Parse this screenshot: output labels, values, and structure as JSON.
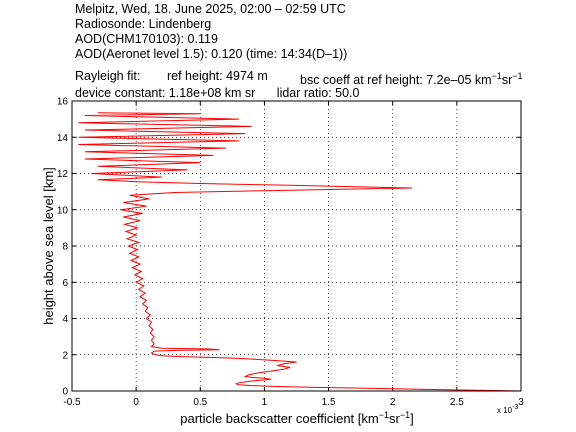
{
  "header": {
    "line1": "Melpitz, Wed, 18. June 2025, 02:00 – 02:59 UTC",
    "line2": "Radiosonde: Lindenberg",
    "line3": "AOD(CHM170103): 0.119",
    "line4": "AOD(Aeronet level 1.5): 0.120   (time: 14:34(D–1))",
    "rayleigh_label": "Rayleigh fit:",
    "ref_height": "ref height: 4974 m",
    "bsc_coeff_prefix": "bsc coeff at ref height: 7.2e–05 km",
    "device_constant": "device constant: 1.18e+08 km sr",
    "lidar_ratio": "lidar ratio: 50.0"
  },
  "chart_data": {
    "type": "line",
    "xlabel": "particle backscatter coefficient [km⁻¹sr⁻¹]",
    "xlabel_parts": {
      "pre": "particle backscatter coefficient [km",
      "sup1": "−1",
      "mid": "sr",
      "sup2": "−1",
      "post": "]"
    },
    "ylabel": "height above sea level [km]",
    "x_multiplier": "x 10",
    "x_multiplier_exp": "-3",
    "xlim": [
      -0.5,
      3.0
    ],
    "ylim": [
      0,
      16
    ],
    "xticks": [
      -0.5,
      0,
      0.5,
      1,
      1.5,
      2,
      2.5,
      3
    ],
    "xtick_labels": [
      "-0.5",
      "0",
      "0.5",
      "1",
      "1.5",
      "2",
      "2.5",
      "3"
    ],
    "yticks": [
      0,
      2,
      4,
      6,
      8,
      10,
      12,
      14,
      16
    ],
    "ytick_labels": [
      "0",
      "2",
      "4",
      "6",
      "8",
      "10",
      "12",
      "14",
      "16"
    ],
    "grid": "dotted",
    "line_color": "#ff0000",
    "series": [
      {
        "profile": [
          [
            3.0,
            0.0
          ],
          [
            2.6,
            0.05
          ],
          [
            2.2,
            0.1
          ],
          [
            1.8,
            0.15
          ],
          [
            1.4,
            0.2
          ],
          [
            1.1,
            0.25
          ],
          [
            0.9,
            0.3
          ],
          [
            0.8,
            0.35
          ],
          [
            0.78,
            0.4
          ],
          [
            0.8,
            0.45
          ],
          [
            0.85,
            0.5
          ],
          [
            0.9,
            0.55
          ],
          [
            0.98,
            0.6
          ],
          [
            1.05,
            0.65
          ],
          [
            1.0,
            0.7
          ],
          [
            0.9,
            0.75
          ],
          [
            0.85,
            0.8
          ],
          [
            0.88,
            0.9
          ],
          [
            0.95,
            1.0
          ],
          [
            1.05,
            1.1
          ],
          [
            1.15,
            1.2
          ],
          [
            1.2,
            1.3
          ],
          [
            1.1,
            1.4
          ],
          [
            1.15,
            1.5
          ],
          [
            1.25,
            1.6
          ],
          [
            1.05,
            1.7
          ],
          [
            0.8,
            1.8
          ],
          [
            0.6,
            1.85
          ],
          [
            0.35,
            1.9
          ],
          [
            0.2,
            1.95
          ],
          [
            0.15,
            2.0
          ],
          [
            0.12,
            2.1
          ],
          [
            0.14,
            2.2
          ],
          [
            0.35,
            2.25
          ],
          [
            0.65,
            2.28
          ],
          [
            0.55,
            2.32
          ],
          [
            0.2,
            2.36
          ],
          [
            0.12,
            2.45
          ],
          [
            0.14,
            2.6
          ],
          [
            0.12,
            2.8
          ],
          [
            0.14,
            3.0
          ],
          [
            0.11,
            3.2
          ],
          [
            0.13,
            3.4
          ],
          [
            0.1,
            3.6
          ],
          [
            0.12,
            3.8
          ],
          [
            0.08,
            4.0
          ],
          [
            0.11,
            4.2
          ],
          [
            0.07,
            4.4
          ],
          [
            0.09,
            4.6
          ],
          [
            0.05,
            4.8
          ],
          [
            0.08,
            5.0
          ],
          [
            0.03,
            5.2
          ],
          [
            0.07,
            5.4
          ],
          [
            0.02,
            5.6
          ],
          [
            0.06,
            5.8
          ],
          [
            0.0,
            6.0
          ],
          [
            0.05,
            6.2
          ],
          [
            -0.01,
            6.4
          ],
          [
            0.04,
            6.6
          ],
          [
            -0.03,
            6.8
          ],
          [
            0.03,
            7.0
          ],
          [
            -0.04,
            7.2
          ],
          [
            0.02,
            7.4
          ],
          [
            -0.05,
            7.6
          ],
          [
            0.01,
            7.8
          ],
          [
            -0.06,
            8.0
          ],
          [
            0.02,
            8.2
          ],
          [
            -0.07,
            8.4
          ],
          [
            0.0,
            8.6
          ],
          [
            -0.08,
            8.8
          ],
          [
            0.01,
            9.0
          ],
          [
            -0.09,
            9.2
          ],
          [
            0.03,
            9.4
          ],
          [
            -0.1,
            9.6
          ],
          [
            0.05,
            9.8
          ],
          [
            -0.12,
            10.0
          ],
          [
            0.08,
            10.2
          ],
          [
            -0.1,
            10.4
          ],
          [
            0.1,
            10.6
          ],
          [
            -0.05,
            10.8
          ],
          [
            0.3,
            10.95
          ],
          [
            1.0,
            11.05
          ],
          [
            2.15,
            11.2
          ],
          [
            1.2,
            11.35
          ],
          [
            0.5,
            11.45
          ],
          [
            0.0,
            11.55
          ],
          [
            -0.3,
            11.65
          ],
          [
            0.2,
            11.8
          ],
          [
            -0.35,
            12.0
          ],
          [
            0.4,
            12.2
          ],
          [
            -0.3,
            12.4
          ],
          [
            0.5,
            12.6
          ],
          [
            -0.4,
            12.8
          ],
          [
            0.6,
            13.0
          ],
          [
            -0.4,
            13.2
          ],
          [
            0.7,
            13.4
          ],
          [
            -0.45,
            13.6
          ],
          [
            0.8,
            13.8
          ],
          [
            -0.45,
            14.0
          ],
          [
            0.85,
            14.2
          ],
          [
            -0.4,
            14.4
          ],
          [
            0.9,
            14.6
          ],
          [
            -0.45,
            14.8
          ],
          [
            0.8,
            15.0
          ],
          [
            -0.4,
            15.2
          ],
          [
            0.5,
            15.3
          ],
          [
            -0.3,
            15.35
          ]
        ]
      }
    ]
  }
}
